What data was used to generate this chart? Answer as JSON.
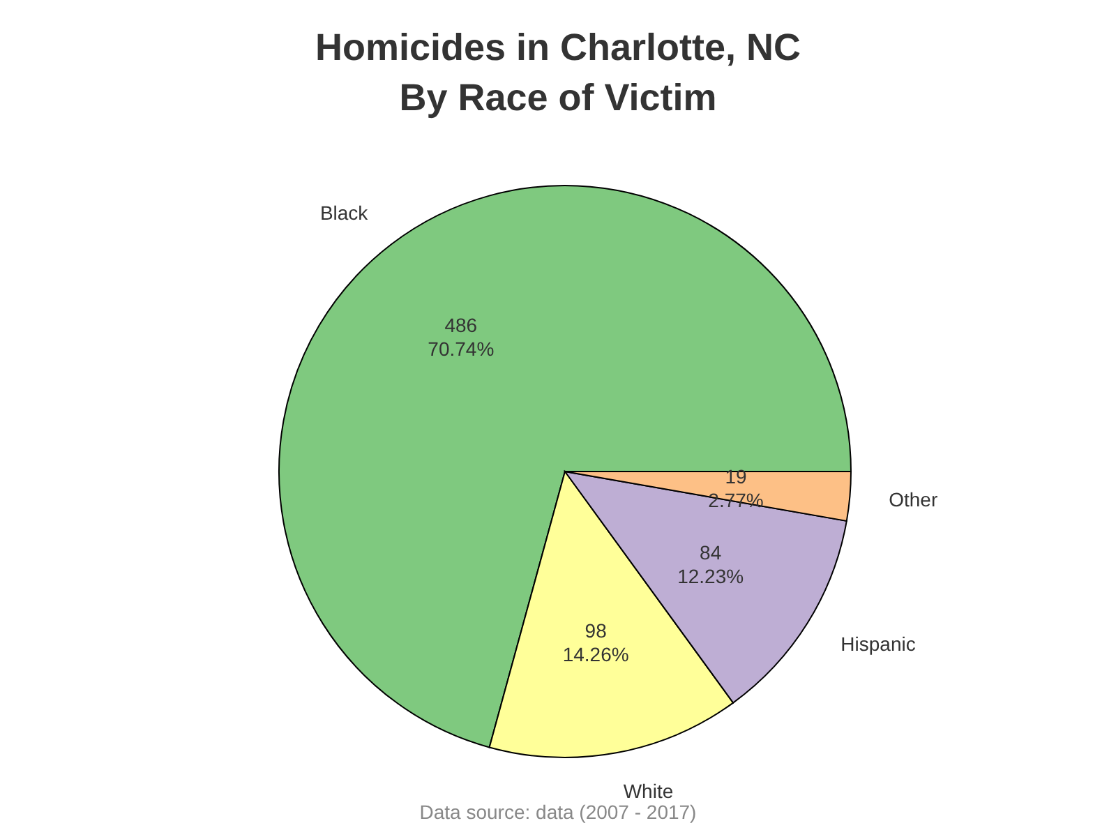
{
  "chart_data": {
    "type": "pie",
    "title": "Homicides in Charlotte, NC\nBy Race of Victim",
    "categories": [
      "Black",
      "White",
      "Hispanic",
      "Other"
    ],
    "values": [
      486,
      98,
      84,
      19
    ],
    "colors": [
      "#7fc97f",
      "#ffff99",
      "#beaed4",
      "#fdc086"
    ],
    "value_labels": [
      "486\n70.74%",
      "98\n14.26%",
      "84\n12.23%",
      "19\n2.77%"
    ],
    "legend": false,
    "annotations": [
      "Data source: data (2007 - 2017)"
    ]
  }
}
